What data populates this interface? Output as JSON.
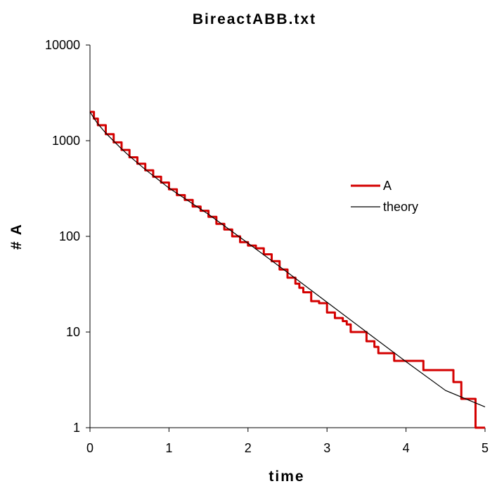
{
  "chart_data": {
    "type": "line",
    "title": "BireactABB.txt",
    "xlabel": "time",
    "ylabel": "# A",
    "xlim": [
      0,
      5
    ],
    "ylim": [
      1,
      10000
    ],
    "y_scale": "log",
    "x_ticks": [
      0,
      1,
      2,
      3,
      4,
      5
    ],
    "x_tick_labels": [
      "0",
      "1",
      "2",
      "3",
      "4",
      "5"
    ],
    "y_ticks": [
      1,
      10,
      100,
      1000,
      10000
    ],
    "y_tick_labels": [
      "1",
      "10",
      "100",
      "1000",
      "10000"
    ],
    "grid": false,
    "legend_position": "right",
    "series": [
      {
        "name": "A",
        "color": "#d40000",
        "style": "step",
        "points": [
          [
            0,
            2000
          ],
          [
            0.05,
            1700
          ],
          [
            0.1,
            1450
          ],
          [
            0.2,
            1170
          ],
          [
            0.3,
            960
          ],
          [
            0.4,
            800
          ],
          [
            0.5,
            670
          ],
          [
            0.6,
            575
          ],
          [
            0.7,
            490
          ],
          [
            0.8,
            420
          ],
          [
            0.9,
            365
          ],
          [
            1.0,
            310
          ],
          [
            1.1,
            270
          ],
          [
            1.2,
            240
          ],
          [
            1.3,
            205
          ],
          [
            1.4,
            185
          ],
          [
            1.5,
            160
          ],
          [
            1.6,
            135
          ],
          [
            1.7,
            118
          ],
          [
            1.8,
            100
          ],
          [
            1.9,
            87
          ],
          [
            2.0,
            80
          ],
          [
            2.1,
            75
          ],
          [
            2.2,
            65
          ],
          [
            2.3,
            55
          ],
          [
            2.4,
            45
          ],
          [
            2.5,
            37
          ],
          [
            2.6,
            32
          ],
          [
            2.65,
            29
          ],
          [
            2.7,
            26
          ],
          [
            2.8,
            21
          ],
          [
            2.9,
            20
          ],
          [
            3.0,
            16
          ],
          [
            3.1,
            14
          ],
          [
            3.2,
            13
          ],
          [
            3.25,
            12
          ],
          [
            3.3,
            10
          ],
          [
            3.5,
            8
          ],
          [
            3.6,
            7
          ],
          [
            3.65,
            6
          ],
          [
            3.85,
            5
          ],
          [
            4.22,
            4
          ],
          [
            4.6,
            3
          ],
          [
            4.7,
            2
          ],
          [
            4.88,
            1
          ],
          [
            5.0,
            1
          ]
        ]
      },
      {
        "name": "theory",
        "color": "#000000",
        "style": "line",
        "points": [
          [
            0,
            2000
          ],
          [
            0.05,
            1720
          ],
          [
            0.1,
            1500
          ],
          [
            0.2,
            1200
          ],
          [
            0.3,
            990
          ],
          [
            0.4,
            820
          ],
          [
            0.5,
            690
          ],
          [
            0.7,
            500
          ],
          [
            1.0,
            320
          ],
          [
            1.5,
            170
          ],
          [
            2.0,
            85
          ],
          [
            2.5,
            42
          ],
          [
            3.0,
            20.5
          ],
          [
            3.5,
            10
          ],
          [
            4.0,
            4.9
          ],
          [
            4.5,
            2.45
          ],
          [
            5.0,
            1.65
          ]
        ]
      }
    ]
  }
}
